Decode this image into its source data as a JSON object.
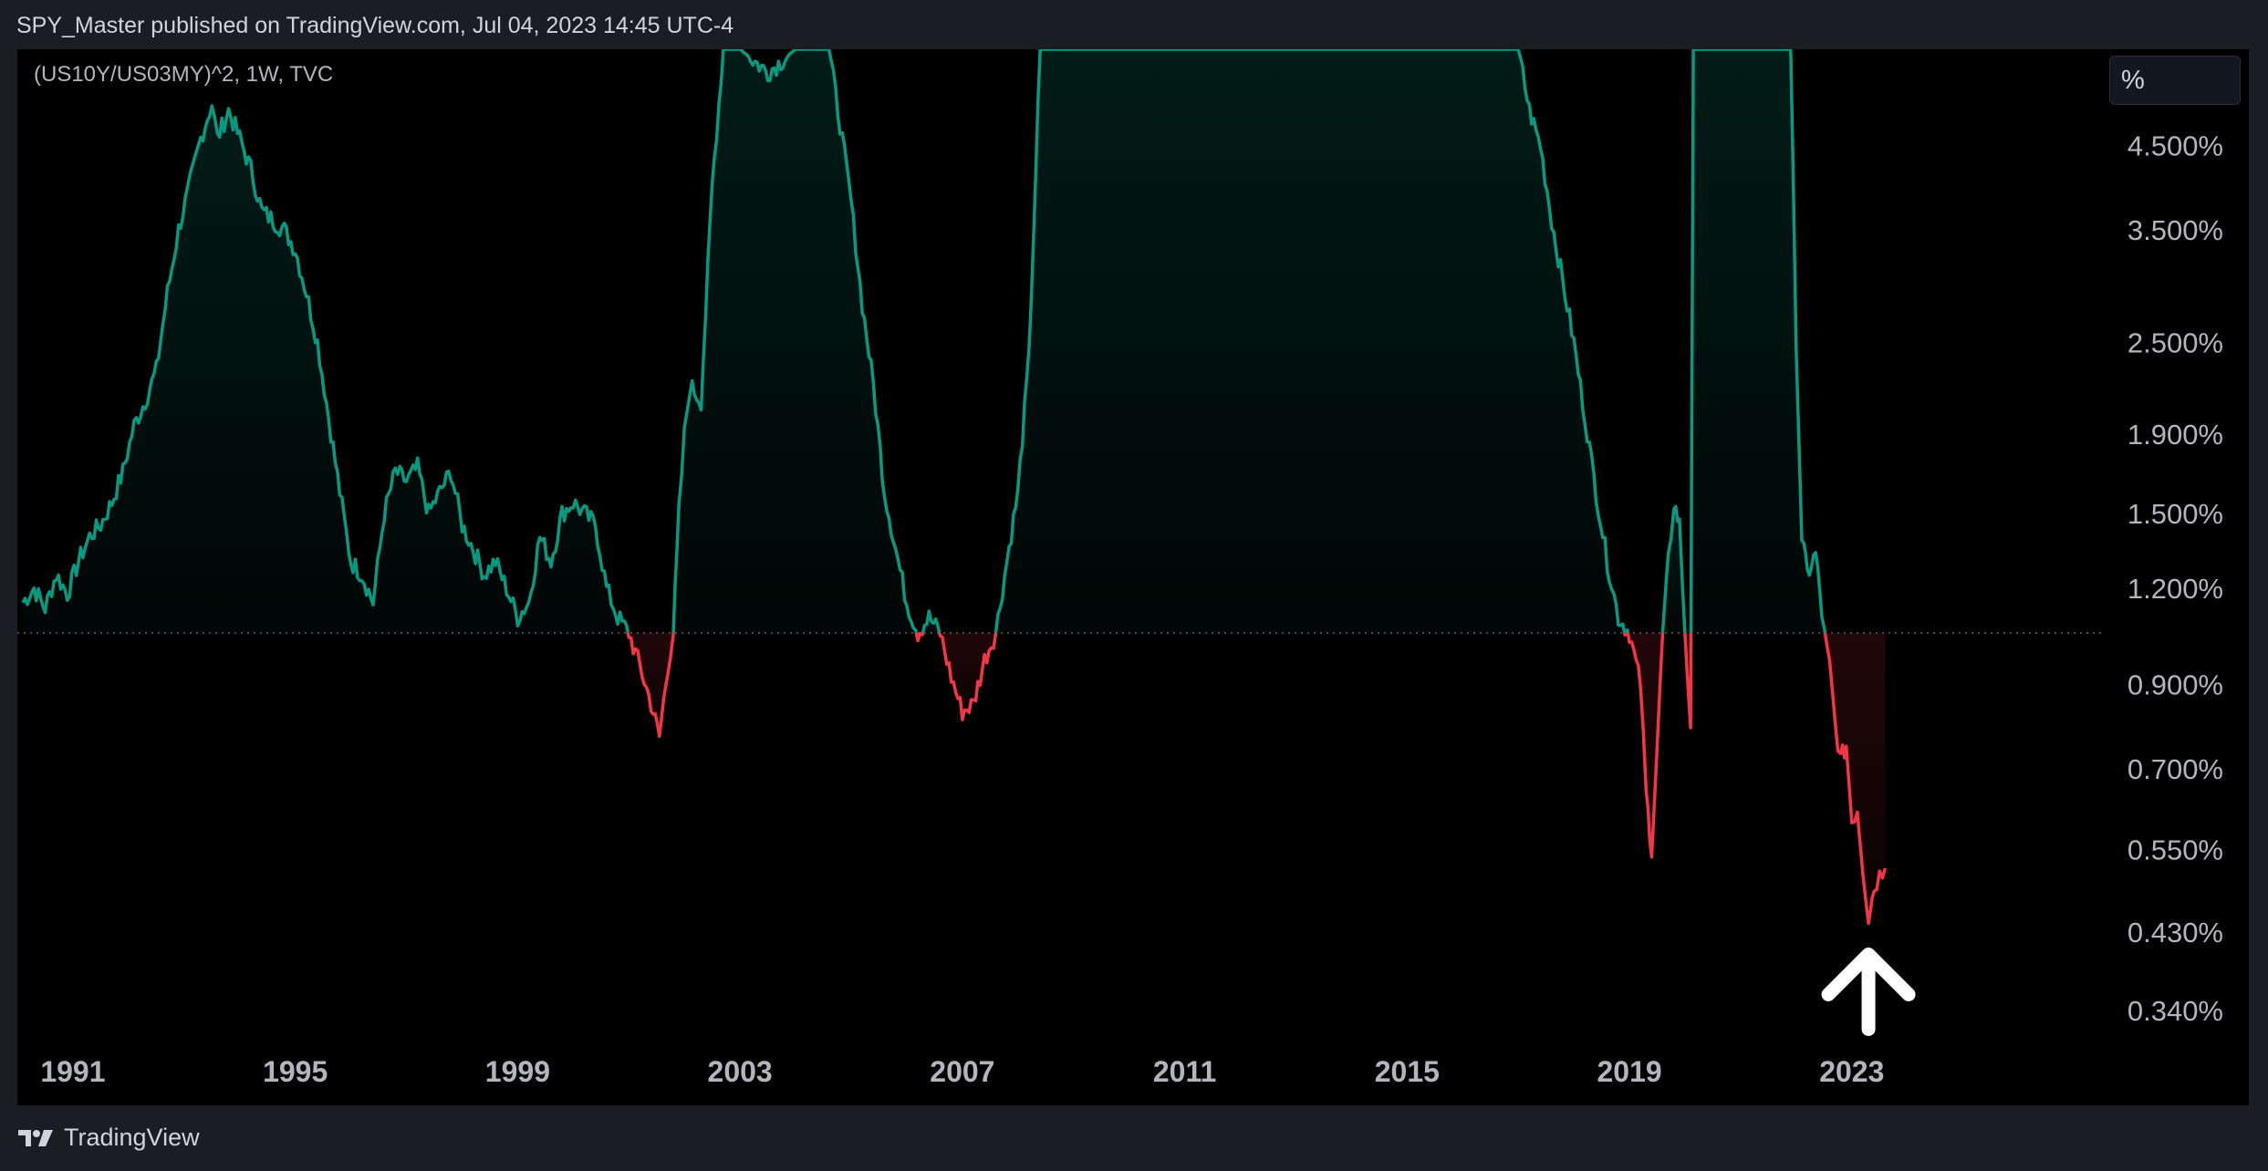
{
  "header": {
    "text": "SPY_Master published on TradingView.com, Jul 04, 2023 14:45 UTC-4"
  },
  "footer": {
    "brand": "TradingView"
  },
  "chart_data": {
    "type": "line",
    "title": "(US10Y/US03MY)^2, 1W, TVC",
    "unit_button": "%",
    "y_scale": "log",
    "baseline": 1.05,
    "xlim": [
      1990.0,
      2027.5
    ],
    "ylim": [
      0.3,
      6.0
    ],
    "y_ticks": [
      {
        "value": 4.5,
        "label": "4.500%"
      },
      {
        "value": 3.5,
        "label": "3.500%"
      },
      {
        "value": 2.5,
        "label": "2.500%"
      },
      {
        "value": 1.9,
        "label": "1.900%"
      },
      {
        "value": 1.5,
        "label": "1.500%"
      },
      {
        "value": 1.2,
        "label": "1.200%"
      },
      {
        "value": 0.9,
        "label": "0.900%"
      },
      {
        "value": 0.7,
        "label": "0.700%"
      },
      {
        "value": 0.55,
        "label": "0.550%"
      },
      {
        "value": 0.43,
        "label": "0.430%"
      },
      {
        "value": 0.34,
        "label": "0.340%"
      }
    ],
    "x_ticks": [
      {
        "value": 1991,
        "label": "1991"
      },
      {
        "value": 1995,
        "label": "1995"
      },
      {
        "value": 1999,
        "label": "1999"
      },
      {
        "value": 2003,
        "label": "2003"
      },
      {
        "value": 2007,
        "label": "2007"
      },
      {
        "value": 2011,
        "label": "2011"
      },
      {
        "value": 2015,
        "label": "2015"
      },
      {
        "value": 2019,
        "label": "2019"
      },
      {
        "value": 2023,
        "label": "2023"
      }
    ],
    "colors": {
      "above": "#089981",
      "below": "#f23645",
      "background": "#000000"
    },
    "annotation": {
      "type": "arrow-up",
      "x": 2023.3,
      "color": "#ffffff"
    },
    "series": [
      {
        "points": [
          [
            1990.1,
            1.15
          ],
          [
            1990.3,
            1.2
          ],
          [
            1990.5,
            1.13
          ],
          [
            1990.7,
            1.25
          ],
          [
            1990.9,
            1.18
          ],
          [
            1991.1,
            1.3
          ],
          [
            1991.3,
            1.4
          ],
          [
            1991.5,
            1.45
          ],
          [
            1991.7,
            1.55
          ],
          [
            1991.9,
            1.7
          ],
          [
            1992.1,
            1.95
          ],
          [
            1992.3,
            2.1
          ],
          [
            1992.5,
            2.3
          ],
          [
            1992.7,
            2.9
          ],
          [
            1992.9,
            3.5
          ],
          [
            1993.1,
            4.0
          ],
          [
            1993.3,
            4.6
          ],
          [
            1993.5,
            5.1
          ],
          [
            1993.6,
            4.6
          ],
          [
            1993.8,
            5.0
          ],
          [
            1994.0,
            4.6
          ],
          [
            1994.2,
            4.2
          ],
          [
            1994.4,
            3.7
          ],
          [
            1994.6,
            3.6
          ],
          [
            1994.8,
            3.5
          ],
          [
            1995.0,
            3.3
          ],
          [
            1995.2,
            2.9
          ],
          [
            1995.4,
            2.5
          ],
          [
            1995.6,
            2.0
          ],
          [
            1995.8,
            1.6
          ],
          [
            1996.0,
            1.3
          ],
          [
            1996.2,
            1.25
          ],
          [
            1996.4,
            1.15
          ],
          [
            1996.6,
            1.5
          ],
          [
            1996.8,
            1.7
          ],
          [
            1997.0,
            1.65
          ],
          [
            1997.2,
            1.72
          ],
          [
            1997.4,
            1.5
          ],
          [
            1997.6,
            1.6
          ],
          [
            1997.8,
            1.7
          ],
          [
            1998.0,
            1.45
          ],
          [
            1998.2,
            1.35
          ],
          [
            1998.4,
            1.25
          ],
          [
            1998.6,
            1.3
          ],
          [
            1998.8,
            1.2
          ],
          [
            1999.0,
            1.1
          ],
          [
            1999.2,
            1.15
          ],
          [
            1999.4,
            1.4
          ],
          [
            1999.6,
            1.3
          ],
          [
            1999.8,
            1.5
          ],
          [
            2000.0,
            1.55
          ],
          [
            2000.2,
            1.5
          ],
          [
            2000.4,
            1.45
          ],
          [
            2000.6,
            1.2
          ],
          [
            2000.8,
            1.1
          ],
          [
            2001.0,
            1.05
          ],
          [
            2001.2,
            0.95
          ],
          [
            2001.4,
            0.85
          ],
          [
            2001.55,
            0.77
          ],
          [
            2001.7,
            0.95
          ],
          [
            2001.8,
            1.05
          ],
          [
            2001.9,
            1.5
          ],
          [
            2002.0,
            1.9
          ],
          [
            2002.1,
            2.2
          ],
          [
            2002.3,
            2.1
          ],
          [
            2002.5,
            4.0
          ],
          [
            2002.7,
            6.0
          ],
          [
            2003.0,
            6.0
          ],
          [
            2003.5,
            5.6
          ],
          [
            2004.0,
            6.0
          ],
          [
            2004.6,
            6.0
          ],
          [
            2004.8,
            4.8
          ],
          [
            2005.0,
            3.8
          ],
          [
            2005.2,
            2.8
          ],
          [
            2005.4,
            2.2
          ],
          [
            2005.6,
            1.6
          ],
          [
            2005.8,
            1.35
          ],
          [
            2006.0,
            1.15
          ],
          [
            2006.2,
            1.05
          ],
          [
            2006.4,
            1.1
          ],
          [
            2006.6,
            1.05
          ],
          [
            2006.8,
            0.92
          ],
          [
            2007.0,
            0.83
          ],
          [
            2007.2,
            0.85
          ],
          [
            2007.4,
            0.97
          ],
          [
            2007.6,
            1.05
          ],
          [
            2007.8,
            1.3
          ],
          [
            2008.0,
            1.6
          ],
          [
            2008.2,
            2.4
          ],
          [
            2008.4,
            6.0
          ],
          [
            2012.0,
            6.0
          ],
          [
            2017.0,
            6.0
          ],
          [
            2017.2,
            5.0
          ],
          [
            2017.4,
            4.5
          ],
          [
            2017.6,
            3.6
          ],
          [
            2017.8,
            3.0
          ],
          [
            2018.0,
            2.5
          ],
          [
            2018.2,
            2.0
          ],
          [
            2018.4,
            1.6
          ],
          [
            2018.6,
            1.3
          ],
          [
            2018.8,
            1.1
          ],
          [
            2019.0,
            1.05
          ],
          [
            2019.2,
            0.9
          ],
          [
            2019.3,
            0.65
          ],
          [
            2019.4,
            0.55
          ],
          [
            2019.5,
            0.75
          ],
          [
            2019.6,
            1.05
          ],
          [
            2019.7,
            1.3
          ],
          [
            2019.8,
            1.55
          ],
          [
            2019.9,
            1.45
          ],
          [
            2020.0,
            1.05
          ],
          [
            2020.1,
            0.8
          ],
          [
            2020.15,
            6.0
          ],
          [
            2021.9,
            6.0
          ],
          [
            2022.0,
            2.5
          ],
          [
            2022.1,
            1.4
          ],
          [
            2022.2,
            1.25
          ],
          [
            2022.35,
            1.33
          ],
          [
            2022.5,
            1.05
          ],
          [
            2022.6,
            0.95
          ],
          [
            2022.7,
            0.8
          ],
          [
            2022.8,
            0.72
          ],
          [
            2022.9,
            0.75
          ],
          [
            2023.0,
            0.6
          ],
          [
            2023.1,
            0.62
          ],
          [
            2023.2,
            0.52
          ],
          [
            2023.3,
            0.45
          ],
          [
            2023.4,
            0.49
          ],
          [
            2023.5,
            0.51
          ],
          [
            2023.6,
            0.52
          ]
        ]
      }
    ]
  }
}
